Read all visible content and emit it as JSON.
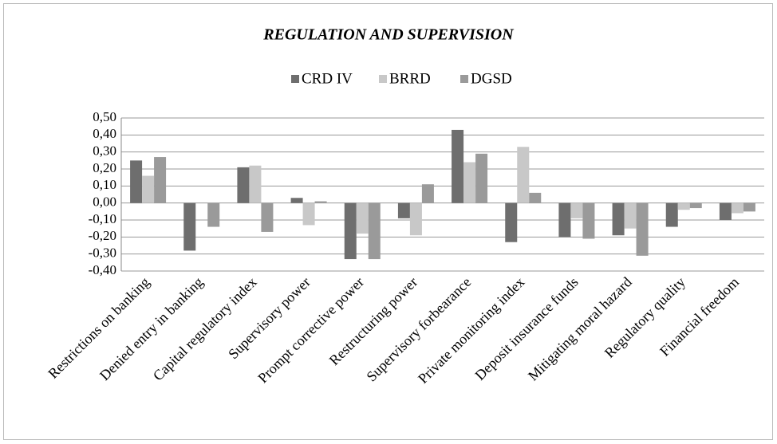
{
  "chart_data": {
    "type": "bar",
    "title": "REGULATION AND SUPERVISION",
    "categories": [
      "Restrictions on banking",
      "Denied entry in banking",
      "Capital regulatory index",
      "Supervisory power",
      "Prompt corrective power",
      "Restructuring  power",
      "Supervisory forbearance",
      "Private monitoring index",
      "Deposit insurance funds",
      "Mitigating moral hazard",
      "Regulatory quality",
      "Financial freedom"
    ],
    "series": [
      {
        "name": "CRD IV",
        "color": "#6e6e6e",
        "values": [
          0.25,
          -0.28,
          0.21,
          0.03,
          -0.33,
          -0.09,
          0.43,
          -0.23,
          -0.2,
          -0.19,
          -0.14,
          -0.1
        ]
      },
      {
        "name": "BRRD",
        "color": "#c8c8c8",
        "values": [
          0.16,
          0.0,
          0.22,
          -0.13,
          -0.18,
          -0.19,
          0.24,
          0.33,
          -0.09,
          -0.15,
          -0.04,
          -0.06
        ]
      },
      {
        "name": "DGSD",
        "color": "#9a9a9a",
        "values": [
          0.27,
          -0.14,
          -0.17,
          0.01,
          -0.33,
          0.11,
          0.29,
          0.06,
          -0.21,
          -0.31,
          -0.03,
          -0.05
        ]
      }
    ],
    "ylim": [
      -0.4,
      0.5
    ],
    "yticks": [
      {
        "value": -0.4,
        "label": "-0,40"
      },
      {
        "value": -0.3,
        "label": "-0,30"
      },
      {
        "value": -0.2,
        "label": "-0,20"
      },
      {
        "value": -0.1,
        "label": "-0,10"
      },
      {
        "value": 0,
        "label": "0,00"
      },
      {
        "value": 0.1,
        "label": "0,10"
      },
      {
        "value": 0.2,
        "label": "0,20"
      },
      {
        "value": 0.3,
        "label": "0,30"
      },
      {
        "value": 0.4,
        "label": "0,40"
      },
      {
        "value": 0.5,
        "label": "0,50"
      }
    ],
    "grid": true,
    "legend": "top"
  }
}
